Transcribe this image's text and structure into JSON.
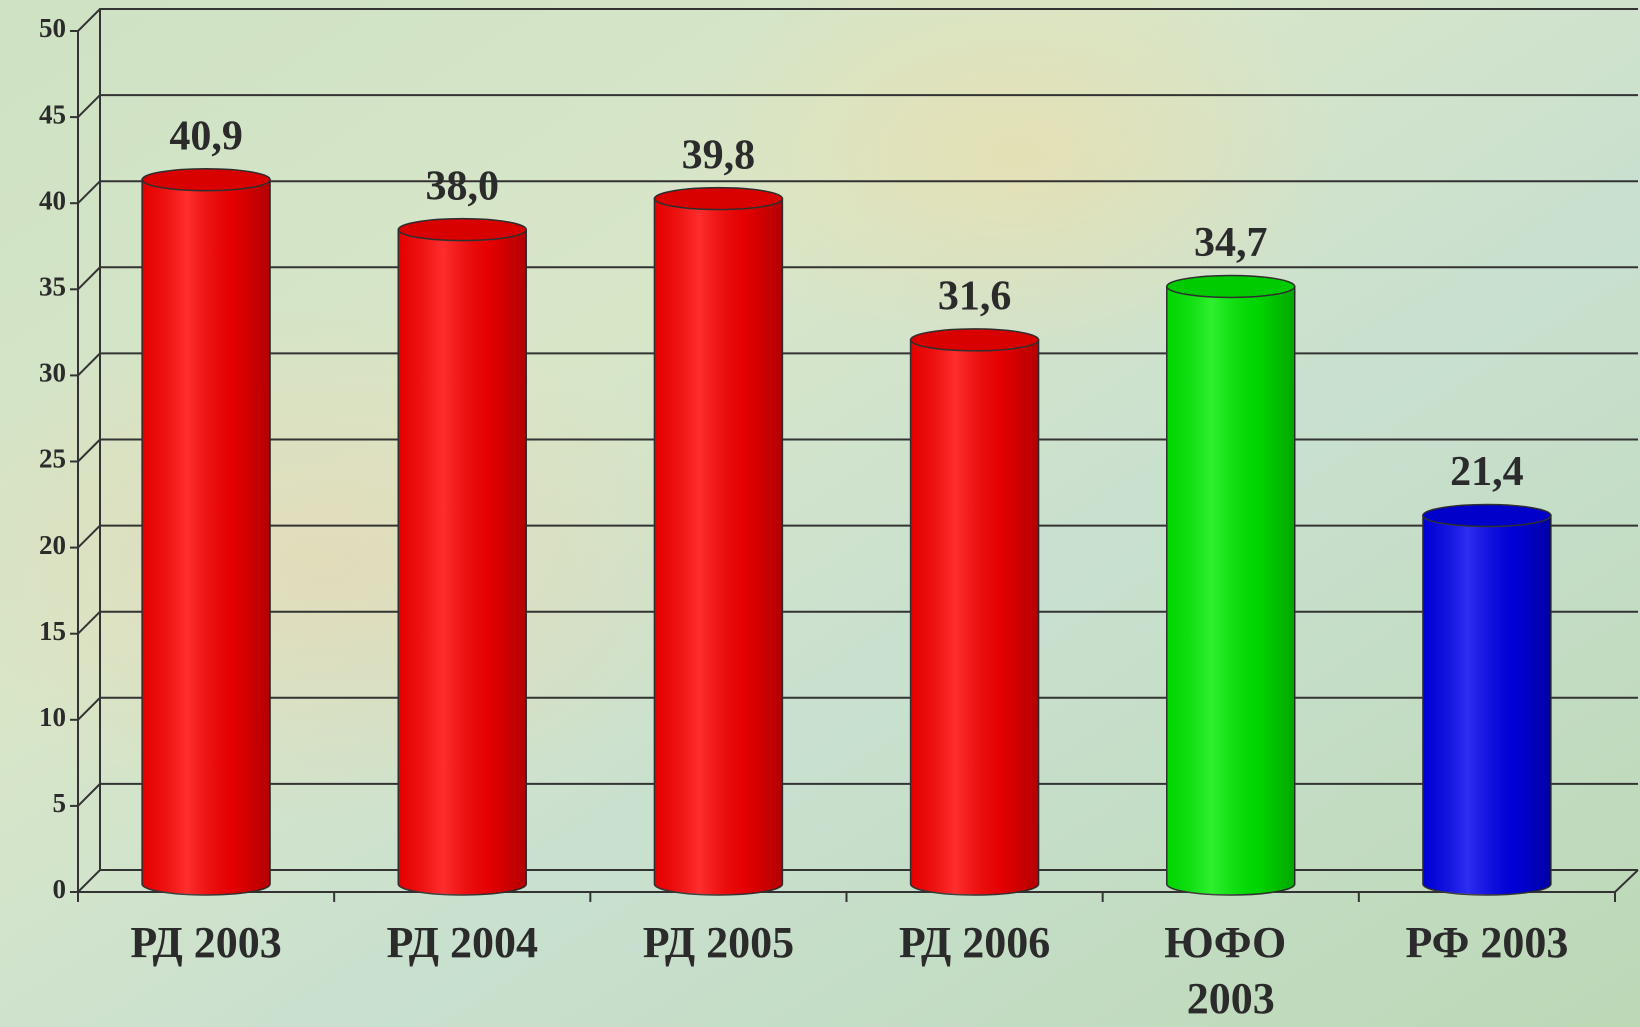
{
  "chart_data": {
    "type": "bar3d",
    "categories": [
      "РД 2003",
      "РД 2004",
      "РД 2005",
      "РД 2006",
      "ЮФО 2003",
      "РФ 2003"
    ],
    "values": [
      40.9,
      38.0,
      39.8,
      31.6,
      34.7,
      21.4
    ],
    "value_labels": [
      "40,9",
      "38,0",
      "39,8",
      "31,6",
      "34,7",
      "21,4"
    ],
    "colors": [
      "#ff0000",
      "#ff0000",
      "#ff0000",
      "#ff0000",
      "#00ee00",
      "#0000ee"
    ],
    "ylim": [
      0,
      50
    ],
    "yticks": [
      0,
      5,
      10,
      15,
      20,
      25,
      30,
      35,
      40,
      45,
      50
    ],
    "grid": true
  }
}
